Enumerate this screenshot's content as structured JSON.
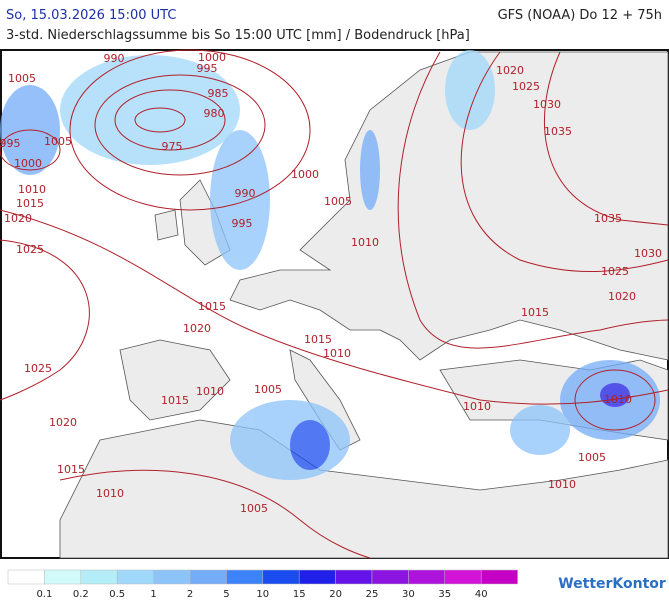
{
  "header": {
    "datetime": "So, 15.03.2026 15:00 UTC",
    "model": "GFS (NOAA) Do 12 + 75h",
    "subtitle": "3-std. Niederschlagssumme bis So 15:00 UTC [mm] / Bodendruck [hPa]"
  },
  "isobars": {
    "color": "#b0202a",
    "labels": [
      "1005",
      "990",
      "1000",
      "995",
      "985",
      "980",
      "975",
      "995",
      "1005",
      "1000",
      "1010",
      "1015",
      "1020",
      "1025",
      "990",
      "995",
      "1000",
      "1005",
      "1010",
      "1015",
      "1020",
      "1025",
      "1020",
      "1015",
      "1010",
      "1005",
      "1015",
      "1010",
      "1005",
      "1015",
      "1010",
      "1015",
      "1020",
      "1025",
      "1030",
      "1035",
      "1035",
      "1030",
      "1025",
      "1020",
      "1010",
      "1010",
      "1005",
      "1010"
    ]
  },
  "legend": {
    "colors": [
      "#ffffff",
      "#d2fafa",
      "#b4ecf8",
      "#a0d8fa",
      "#8cc4fa",
      "#74acf8",
      "#3c82f8",
      "#1a4cf0",
      "#2020e8",
      "#6414e8",
      "#8c14e0",
      "#ac14dc",
      "#d214d8",
      "#c400c4"
    ],
    "labels": [
      0.1,
      0.2,
      0.5,
      1,
      2,
      5,
      10,
      15,
      20,
      25,
      30,
      35,
      40
    ]
  },
  "logo": "WetterKontor"
}
